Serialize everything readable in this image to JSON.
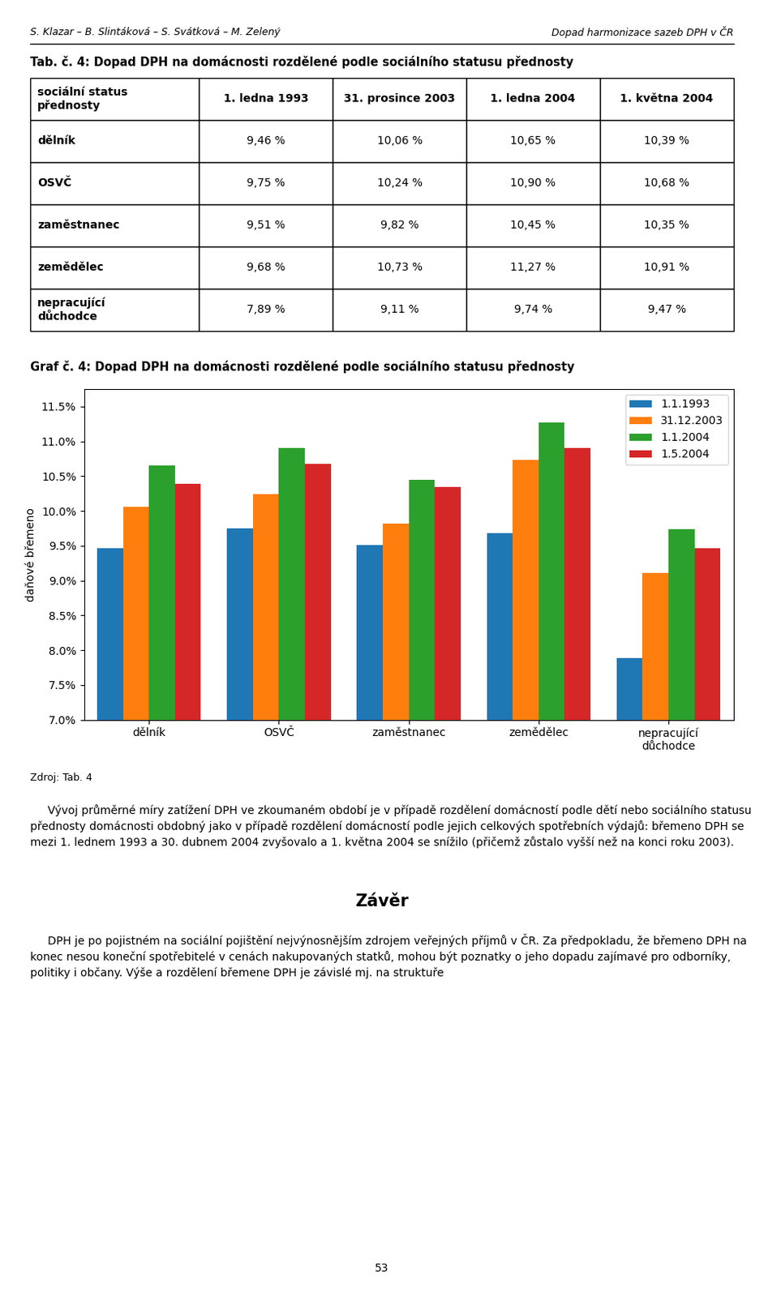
{
  "chart_data": [
    {
      "type": "table",
      "title": "Tab. č. 4: Dopad DPH na domácnosti rozdělené podle sociálního statusu přednosty",
      "columns": [
        "sociální status\npřednosty",
        "1. ledna 1993",
        "31. prosince 2003",
        "1. ledna 2004",
        "1. května 2004"
      ],
      "rows": [
        "dělník",
        "OSVČ",
        "zaměstnanec",
        "zemědělec",
        "nepracující\ndůchodce"
      ],
      "values": [
        [
          9.46,
          10.06,
          10.65,
          10.39
        ],
        [
          9.75,
          10.24,
          10.9,
          10.68
        ],
        [
          9.51,
          9.82,
          10.45,
          10.35
        ],
        [
          9.68,
          10.73,
          11.27,
          10.91
        ],
        [
          7.89,
          9.11,
          9.74,
          9.47
        ]
      ],
      "value_labels": [
        [
          "9,46 %",
          "10,06 %",
          "10,65 %",
          "10,39 %"
        ],
        [
          "9,75 %",
          "10,24 %",
          "10,90 %",
          "10,68 %"
        ],
        [
          "9,51 %",
          "9,82 %",
          "10,45 %",
          "10,35 %"
        ],
        [
          "9,68 %",
          "10,73 %",
          "11,27 %",
          "10,91 %"
        ],
        [
          "7,89 %",
          "9,11 %",
          "9,74 %",
          "9,47 %"
        ]
      ]
    },
    {
      "type": "bar",
      "title": "Graf č. 4: Dopad DPH na domácnosti rozdělené podle sociálního statusu přednosty",
      "categories": [
        "dělník",
        "OSVČ",
        "zaměstnanec",
        "zemědělec",
        "nepracující\ndůchodce"
      ],
      "series": [
        {
          "name": "1.1.1993",
          "values": [
            9.46,
            9.75,
            9.51,
            9.68,
            7.89
          ]
        },
        {
          "name": "31.12.2003",
          "values": [
            10.06,
            10.24,
            9.82,
            10.73,
            9.11
          ]
        },
        {
          "name": "1.1.2004",
          "values": [
            10.65,
            10.9,
            10.45,
            11.27,
            9.74
          ]
        },
        {
          "name": "1.5.2004",
          "values": [
            10.39,
            10.68,
            10.35,
            10.91,
            9.47
          ]
        }
      ],
      "ylabel": "daňové břemeno",
      "ylim": [
        7.0,
        11.75
      ],
      "yticks": [
        {
          "value": 7.0,
          "label": "7.0%"
        },
        {
          "value": 7.5,
          "label": "7.5%"
        },
        {
          "value": 8.0,
          "label": "8.0%"
        },
        {
          "value": 8.5,
          "label": "8.5%"
        },
        {
          "value": 9.0,
          "label": "9.0%"
        },
        {
          "value": 9.5,
          "label": "9.5%"
        },
        {
          "value": 10.0,
          "label": "10.0%"
        },
        {
          "value": 10.5,
          "label": "10.5%"
        },
        {
          "value": 11.0,
          "label": "11.0%"
        },
        {
          "value": 11.5,
          "label": "11.5%"
        }
      ],
      "legend": "upper right",
      "grid": false,
      "annotations": [
        "S. Klazar – B. Slintáková – S. Svátková – M. Zelený",
        "Dopad harmonizace sazeb DPH v ČR",
        "Zdroj: Tab. 4",
        "     Vývoj průměrné míry zatížení DPH ve zkoumaném období je v případě rozdělení domácností podle dětí nebo sociálního statusu přednosty domácnosti obdobný jako v případě rozdělení domácností podle jejich celkových spotřebních výdajů: břemeno DPH se mezi 1. lednem 1993 a 30. dubnem 2004 zvyšovalo a 1. května 2004 se snížilo (přičemž zůstalo vyšší než na konci roku 2003).",
        "Závěr",
        "     DPH je po pojistném na sociální pojištění nejvýnosnějším zdrojem veřejných příjmů v ČR. Za předpokladu, že břemeno DPH na konec nesou koneční spotřebitelé v cenách nakupovaných statků, mohou být poznatky o jeho dopadu zajímavé pro odborníky, politiky i občany. Výše a rozdělení břemene DPH je závislé mj. na struktuře",
        "53"
      ]
    }
  ]
}
